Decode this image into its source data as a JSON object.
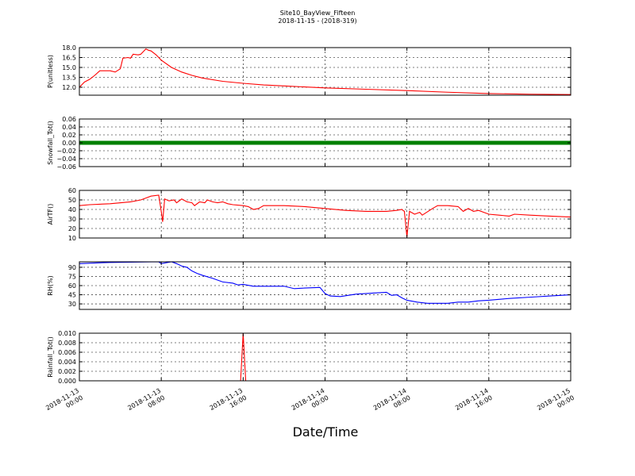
{
  "chart_data": {
    "type": "line",
    "title": "Site10_BayView_Fifteen",
    "subtitle": "2018-11-15 - (2018-319)",
    "xlabel": "Date/Time",
    "x_range": [
      "2018-11-13 00:00",
      "2018-11-15 00:00"
    ],
    "x_ticks": [
      {
        "time": "2018-11-13 00:00",
        "line1": "2018-11-13",
        "line2": "00:00"
      },
      {
        "time": "2018-11-13 08:00",
        "line1": "2018-11-13",
        "line2": "08:00"
      },
      {
        "time": "2018-11-13 16:00",
        "line1": "2018-11-13",
        "line2": "16:00"
      },
      {
        "time": "2018-11-14 00:00",
        "line1": "2018-11-14",
        "line2": "00:00"
      },
      {
        "time": "2018-11-14 08:00",
        "line1": "2018-11-14",
        "line2": "08:00"
      },
      {
        "time": "2018-11-14 16:00",
        "line1": "2018-11-14",
        "line2": "16:00"
      },
      {
        "time": "2018-11-15 00:00",
        "line1": "2018-11-15",
        "line2": "00:00"
      }
    ],
    "grid": true,
    "panels": [
      {
        "ylabel": "P(unitless)",
        "ylim": [
          10.8,
          18.0
        ],
        "yticks": [
          "18.0",
          "16.5",
          "15.0",
          "13.5",
          "12.0"
        ],
        "ytick_values": [
          18.0,
          16.5,
          15.0,
          13.5,
          12.0
        ],
        "series": [
          {
            "color": "#ff0000",
            "style": "line",
            "points": [
              [
                "2018-11-13 00:00",
                12.0
              ],
              [
                "2018-11-13 00:30",
                12.8
              ],
              [
                "2018-11-13 01:00",
                13.2
              ],
              [
                "2018-11-13 01:30",
                13.8
              ],
              [
                "2018-11-13 02:00",
                14.5
              ],
              [
                "2018-11-13 03:00",
                14.5
              ],
              [
                "2018-11-13 03:30",
                14.3
              ],
              [
                "2018-11-13 04:00",
                14.8
              ],
              [
                "2018-11-13 04:15",
                16.4
              ],
              [
                "2018-11-13 04:45",
                16.5
              ],
              [
                "2018-11-13 05:00",
                16.4
              ],
              [
                "2018-11-13 05:15",
                17.0
              ],
              [
                "2018-11-13 05:45",
                16.9
              ],
              [
                "2018-11-13 06:00",
                17.0
              ],
              [
                "2018-11-13 06:30",
                17.8
              ],
              [
                "2018-11-13 06:45",
                17.6
              ],
              [
                "2018-11-13 07:00",
                17.5
              ],
              [
                "2018-11-13 07:30",
                16.9
              ],
              [
                "2018-11-13 08:00",
                16.1
              ],
              [
                "2018-11-13 09:00",
                15.0
              ],
              [
                "2018-11-13 10:00",
                14.3
              ],
              [
                "2018-11-13 11:00",
                13.8
              ],
              [
                "2018-11-13 12:00",
                13.4
              ],
              [
                "2018-11-13 14:00",
                12.9
              ],
              [
                "2018-11-13 16:00",
                12.6
              ],
              [
                "2018-11-13 18:00",
                12.35
              ],
              [
                "2018-11-13 20:00",
                12.2
              ],
              [
                "2018-11-14 00:00",
                11.9
              ],
              [
                "2018-11-14 04:00",
                11.7
              ],
              [
                "2018-11-14 08:00",
                11.5
              ],
              [
                "2018-11-14 12:00",
                11.25
              ],
              [
                "2018-11-14 16:00",
                11.05
              ],
              [
                "2018-11-14 20:00",
                10.95
              ],
              [
                "2018-11-15 00:00",
                10.9
              ]
            ]
          }
        ]
      },
      {
        "ylabel": "Snowfall_Tot()",
        "ylim": [
          -0.06,
          0.06
        ],
        "yticks": [
          "0.06",
          "0.04",
          "0.02",
          "0.00",
          "−0.02",
          "−0.04",
          "−0.06"
        ],
        "ytick_values": [
          0.06,
          0.04,
          0.02,
          0.0,
          -0.02,
          -0.04,
          -0.06
        ],
        "series": [
          {
            "color": "#008000",
            "style": "markers",
            "constant": 0.0
          }
        ]
      },
      {
        "ylabel": "AirTF()",
        "ylim": [
          10,
          60
        ],
        "yticks": [
          "60",
          "50",
          "40",
          "30",
          "20",
          "10"
        ],
        "ytick_values": [
          60,
          50,
          40,
          30,
          20,
          10
        ],
        "series": [
          {
            "color": "#ff0000",
            "style": "line",
            "points": [
              [
                "2018-11-13 00:00",
                44
              ],
              [
                "2018-11-13 01:00",
                45
              ],
              [
                "2018-11-13 03:00",
                46
              ],
              [
                "2018-11-13 05:00",
                48
              ],
              [
                "2018-11-13 06:00",
                50
              ],
              [
                "2018-11-13 06:30",
                52
              ],
              [
                "2018-11-13 07:00",
                54
              ],
              [
                "2018-11-13 07:45",
                55
              ],
              [
                "2018-11-13 08:00",
                38
              ],
              [
                "2018-11-13 08:08",
                27
              ],
              [
                "2018-11-13 08:20",
                51
              ],
              [
                "2018-11-13 08:45",
                49
              ],
              [
                "2018-11-13 09:15",
                50
              ],
              [
                "2018-11-13 09:30",
                47
              ],
              [
                "2018-11-13 10:00",
                51
              ],
              [
                "2018-11-13 10:30",
                48
              ],
              [
                "2018-11-13 11:00",
                47
              ],
              [
                "2018-11-13 11:15",
                44
              ],
              [
                "2018-11-13 11:45",
                48
              ],
              [
                "2018-11-13 12:15",
                47
              ],
              [
                "2018-11-13 12:30",
                50
              ],
              [
                "2018-11-13 13:00",
                48
              ],
              [
                "2018-11-13 13:30",
                47
              ],
              [
                "2018-11-13 14:00",
                48
              ],
              [
                "2018-11-13 14:30",
                46
              ],
              [
                "2018-11-13 15:00",
                45
              ],
              [
                "2018-11-13 16:00",
                44
              ],
              [
                "2018-11-13 16:30",
                43
              ],
              [
                "2018-11-13 17:00",
                40
              ],
              [
                "2018-11-13 17:30",
                41
              ],
              [
                "2018-11-13 18:00",
                44
              ],
              [
                "2018-11-13 20:00",
                44
              ],
              [
                "2018-11-13 22:00",
                43
              ],
              [
                "2018-11-14 00:00",
                41
              ],
              [
                "2018-11-14 02:00",
                39
              ],
              [
                "2018-11-14 04:00",
                38
              ],
              [
                "2018-11-14 06:00",
                38
              ],
              [
                "2018-11-14 07:00",
                39
              ],
              [
                "2018-11-14 07:30",
                40
              ],
              [
                "2018-11-14 07:45",
                38
              ],
              [
                "2018-11-14 08:00",
                11
              ],
              [
                "2018-11-14 08:15",
                38
              ],
              [
                "2018-11-14 08:45",
                35
              ],
              [
                "2018-11-14 09:15",
                37
              ],
              [
                "2018-11-14 09:30",
                34
              ],
              [
                "2018-11-14 10:30",
                41
              ],
              [
                "2018-11-14 11:00",
                44
              ],
              [
                "2018-11-14 12:00",
                44
              ],
              [
                "2018-11-14 13:00",
                43
              ],
              [
                "2018-11-14 13:30",
                38
              ],
              [
                "2018-11-14 14:00",
                41
              ],
              [
                "2018-11-14 14:30",
                38
              ],
              [
                "2018-11-14 15:00",
                39
              ],
              [
                "2018-11-14 16:00",
                35
              ],
              [
                "2018-11-14 17:00",
                34
              ],
              [
                "2018-11-14 18:00",
                33
              ],
              [
                "2018-11-14 18:30",
                35
              ],
              [
                "2018-11-14 20:00",
                34
              ],
              [
                "2018-11-14 22:00",
                33
              ],
              [
                "2018-11-15 00:00",
                32
              ]
            ]
          }
        ]
      },
      {
        "ylabel": "RH(%)",
        "ylim": [
          21,
          99
        ],
        "yticks": [
          "90",
          "75",
          "60",
          "45",
          "30"
        ],
        "ytick_values": [
          90,
          75,
          60,
          45,
          30
        ],
        "series": [
          {
            "color": "#0000ff",
            "style": "line",
            "points": [
              [
                "2018-11-13 00:00",
                96
              ],
              [
                "2018-11-13 03:00",
                98
              ],
              [
                "2018-11-13 07:45",
                99
              ],
              [
                "2018-11-13 08:00",
                96
              ],
              [
                "2018-11-13 09:00",
                99
              ],
              [
                "2018-11-13 09:30",
                96
              ],
              [
                "2018-11-13 10:00",
                92
              ],
              [
                "2018-11-13 10:30",
                90
              ],
              [
                "2018-11-13 11:00",
                84
              ],
              [
                "2018-11-13 11:30",
                80
              ],
              [
                "2018-11-13 12:00",
                77
              ],
              [
                "2018-11-13 13:00",
                72
              ],
              [
                "2018-11-13 14:00",
                66
              ],
              [
                "2018-11-13 15:00",
                64
              ],
              [
                "2018-11-13 15:30",
                61
              ],
              [
                "2018-11-13 16:00",
                62
              ],
              [
                "2018-11-13 17:00",
                59
              ],
              [
                "2018-11-13 18:00",
                59
              ],
              [
                "2018-11-13 20:00",
                59
              ],
              [
                "2018-11-13 21:00",
                55
              ],
              [
                "2018-11-13 22:00",
                56
              ],
              [
                "2018-11-13 23:30",
                57
              ],
              [
                "2018-11-14 00:00",
                47
              ],
              [
                "2018-11-14 00:30",
                43
              ],
              [
                "2018-11-14 01:30",
                42
              ],
              [
                "2018-11-14 03:00",
                46
              ],
              [
                "2018-11-14 05:00",
                48
              ],
              [
                "2018-11-14 06:00",
                49
              ],
              [
                "2018-11-14 06:30",
                44
              ],
              [
                "2018-11-14 07:00",
                45
              ],
              [
                "2018-11-14 07:30",
                40
              ],
              [
                "2018-11-14 08:00",
                36
              ],
              [
                "2018-11-14 09:00",
                33
              ],
              [
                "2018-11-14 10:00",
                31
              ],
              [
                "2018-11-14 12:00",
                31
              ],
              [
                "2018-11-14 13:00",
                33
              ],
              [
                "2018-11-14 14:00",
                33
              ],
              [
                "2018-11-14 15:00",
                35
              ],
              [
                "2018-11-14 16:00",
                36
              ],
              [
                "2018-11-14 18:00",
                39
              ],
              [
                "2018-11-14 20:00",
                41
              ],
              [
                "2018-11-14 22:00",
                43
              ],
              [
                "2018-11-15 00:00",
                45
              ]
            ]
          }
        ]
      },
      {
        "ylabel": "Rainfall_Tot()",
        "ylim": [
          0.0,
          0.01
        ],
        "yticks": [
          "0.010",
          "0.008",
          "0.006",
          "0.004",
          "0.002",
          "0.000"
        ],
        "ytick_values": [
          0.01,
          0.008,
          0.006,
          0.004,
          0.002,
          0.0
        ],
        "series": [
          {
            "color": "#ff0000",
            "style": "line",
            "points": [
              [
                "2018-11-13 00:00",
                0.0
              ],
              [
                "2018-11-13 15:45",
                0.0
              ],
              [
                "2018-11-13 16:00",
                0.01
              ],
              [
                "2018-11-13 16:15",
                0.0
              ],
              [
                "2018-11-15 00:00",
                0.0
              ]
            ]
          }
        ]
      }
    ]
  }
}
